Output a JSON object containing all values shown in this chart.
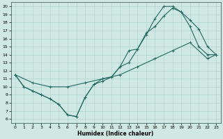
{
  "xlabel": "Humidex (Indice chaleur)",
  "ylabel": "",
  "xlim": [
    -0.5,
    23.5
  ],
  "ylim": [
    5.5,
    20.5
  ],
  "xticks": [
    0,
    1,
    2,
    3,
    4,
    5,
    6,
    7,
    8,
    9,
    10,
    11,
    12,
    13,
    14,
    15,
    16,
    17,
    18,
    19,
    20,
    21,
    22,
    23
  ],
  "yticks": [
    6,
    7,
    8,
    9,
    10,
    11,
    12,
    13,
    14,
    15,
    16,
    17,
    18,
    19,
    20
  ],
  "bg_color": "#cfe8e4",
  "grid_color": "#b0d4ce",
  "line_color": "#206860",
  "line1_x": [
    0,
    1,
    2,
    3,
    4,
    5,
    6,
    7,
    8,
    9,
    10,
    11,
    12,
    13,
    14,
    15,
    16,
    17,
    18,
    19,
    20,
    21,
    22,
    23
  ],
  "line1_y": [
    11.5,
    10.0,
    9.5,
    9.0,
    8.5,
    7.8,
    6.5,
    6.3,
    8.7,
    10.3,
    11.0,
    11.2,
    12.5,
    13.0,
    14.7,
    16.5,
    18.5,
    20.0,
    20.0,
    19.3,
    17.5,
    15.0,
    14.0,
    14.0
  ],
  "line2_x": [
    0,
    1,
    2,
    3,
    4,
    5,
    6,
    7,
    8,
    9,
    10,
    11,
    12,
    13,
    14,
    15,
    16,
    17,
    18,
    19,
    20,
    21,
    22,
    23
  ],
  "line2_y": [
    11.5,
    10.0,
    9.5,
    9.0,
    8.5,
    7.8,
    6.5,
    6.3,
    8.7,
    10.3,
    10.7,
    11.2,
    12.5,
    14.5,
    14.7,
    16.7,
    17.5,
    18.8,
    19.8,
    19.3,
    18.3,
    17.2,
    15.0,
    14.0
  ],
  "line3_x": [
    0,
    2,
    4,
    6,
    8,
    10,
    12,
    14,
    16,
    18,
    20,
    22,
    23
  ],
  "line3_y": [
    11.5,
    10.5,
    10.0,
    10.0,
    10.5,
    11.0,
    11.5,
    12.5,
    13.5,
    14.5,
    15.5,
    13.5,
    14.0
  ]
}
